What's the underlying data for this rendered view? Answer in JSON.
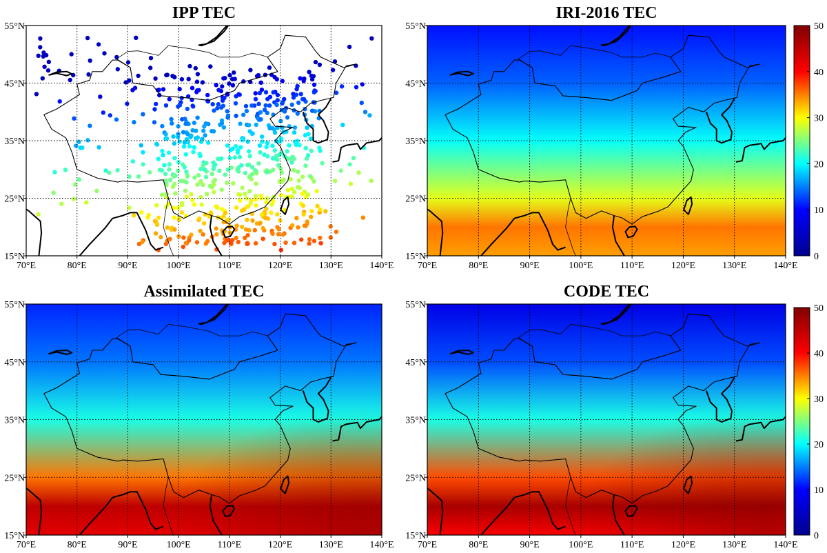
{
  "panels": [
    {
      "id": "ipp",
      "title": "IPP TEC",
      "kind": "points"
    },
    {
      "id": "iri",
      "title": "IRI-2016 TEC",
      "kind": "field",
      "colorbar": true
    },
    {
      "id": "assim",
      "title": "Assimilated TEC",
      "kind": "field"
    },
    {
      "id": "code",
      "title": "CODE TEC",
      "kind": "field",
      "colorbar": true
    }
  ],
  "axes": {
    "lon_ticks": [
      "70°E",
      "80°E",
      "90°E",
      "100°E",
      "110°E",
      "120°E",
      "130°E",
      "140°E"
    ],
    "lat_ticks": [
      "15°N",
      "25°N",
      "35°N",
      "45°N",
      "55°N"
    ],
    "lon_range": [
      70,
      140
    ],
    "lat_range": [
      15,
      55
    ],
    "grid": "dotted"
  },
  "colorbar": {
    "ticks": [
      "0",
      "10",
      "20",
      "30",
      "40",
      "50"
    ],
    "range": [
      0,
      50
    ],
    "colormap": "jet",
    "colors": [
      "#00008f",
      "#0000ff",
      "#00ffff",
      "#ffff00",
      "#ff0000",
      "#800000"
    ]
  },
  "chart_data": [
    {
      "type": "scatter",
      "title": "IPP TEC",
      "xlim": [
        70,
        140
      ],
      "ylim": [
        15,
        55
      ],
      "color_range": [
        0,
        50
      ],
      "note_points": "TEC at ionospheric pierce points, dense over China, increasing southward"
    },
    {
      "type": "heatmap",
      "title": "IRI-2016 TEC",
      "xlim": [
        70,
        140
      ],
      "ylim": [
        15,
        55
      ],
      "color_range": [
        0,
        50
      ],
      "profile_lat": [
        55,
        45,
        35,
        25,
        20,
        15
      ],
      "profile_tec": [
        7,
        11,
        19,
        30,
        38,
        36
      ]
    },
    {
      "type": "heatmap",
      "title": "Assimilated TEC",
      "xlim": [
        70,
        140
      ],
      "ylim": [
        15,
        55
      ],
      "color_range": [
        0,
        50
      ],
      "profile_lat": [
        55,
        45,
        35,
        25,
        20,
        15
      ],
      "profile_tec": [
        8,
        12,
        20,
        38,
        47,
        45
      ]
    },
    {
      "type": "heatmap",
      "title": "CODE TEC",
      "xlim": [
        70,
        140
      ],
      "ylim": [
        15,
        55
      ],
      "color_range": [
        0,
        50
      ],
      "profile_lat": [
        55,
        45,
        35,
        25,
        20,
        15
      ],
      "profile_tec": [
        5,
        10,
        20,
        40,
        48,
        44
      ]
    }
  ]
}
